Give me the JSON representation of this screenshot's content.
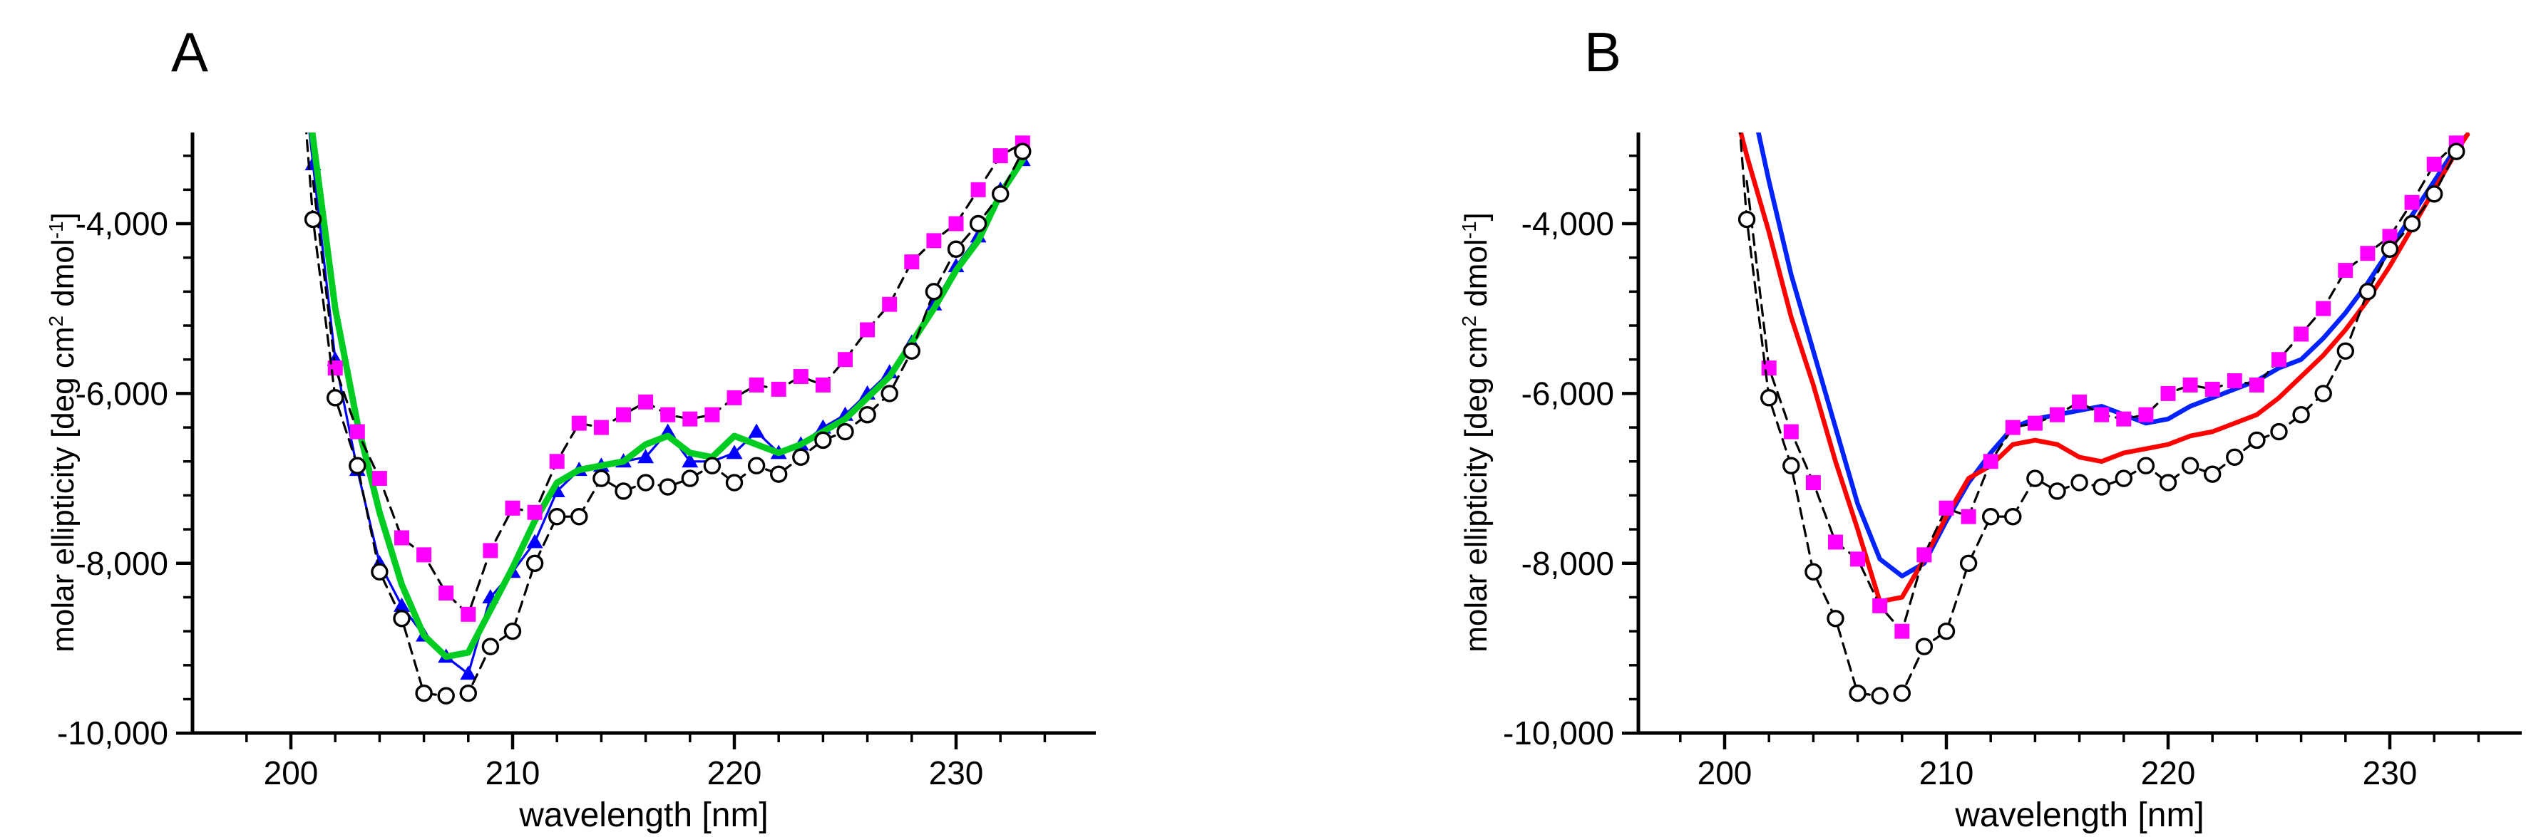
{
  "figure": {
    "background": "#ffffff",
    "axis_color": "#000000"
  },
  "chart_data": [
    {
      "panel_label": "A",
      "type": "line",
      "xlabel": "wavelength [nm]",
      "ylabel_parts": [
        {
          "text": "molar ellipticity [deg cm"
        },
        {
          "text": "2",
          "sup": true
        },
        {
          "text": " dmol"
        },
        {
          "text": "-1",
          "sup": true
        },
        {
          "text": "]"
        }
      ],
      "x_range": [
        195.6,
        236.2
      ],
      "y_range": [
        -10000,
        -2790
      ],
      "x_ticks": [
        200,
        210,
        220,
        230
      ],
      "x_tick_labels": [
        "200",
        "210",
        "220",
        "230"
      ],
      "x_minor_ticks": [
        198,
        202,
        204,
        206,
        208,
        212,
        214,
        216,
        218,
        222,
        224,
        226,
        228,
        232,
        234
      ],
      "y_ticks": [
        -4000,
        -6000,
        -8000,
        -10000
      ],
      "y_tick_labels": [
        "-4,000",
        "-6,000",
        "-8,000",
        "-10,000"
      ],
      "y_minor_ticks": [
        -3200,
        -3600,
        -4400,
        -4800,
        -5200,
        -5600,
        -6400,
        -6800,
        -7200,
        -7600,
        -8400,
        -8800,
        -9200,
        -9600
      ],
      "grid": false,
      "legend": false,
      "series": [
        {
          "name": "blue-triangles",
          "marker": "triangle",
          "marker_color": "#0000ff",
          "marker_size": 21,
          "marker_skip": 1,
          "line_color": "#0000ff",
          "line_width": 3.2,
          "line_dash": null,
          "x": [
            200.7,
            201,
            202,
            203,
            204,
            205,
            206,
            207,
            208,
            209,
            210,
            211,
            212,
            213,
            214,
            215,
            216,
            217,
            218,
            219,
            220,
            221,
            222,
            223,
            224,
            225,
            226,
            227,
            228,
            229,
            230,
            231,
            232,
            233
          ],
          "y": [
            -2600,
            -3300,
            -5600,
            -6900,
            -8000,
            -8500,
            -8850,
            -9100,
            -9300,
            -8400,
            -8100,
            -7750,
            -7150,
            -6900,
            -6850,
            -6800,
            -6750,
            -6450,
            -6800,
            -6800,
            -6700,
            -6450,
            -6700,
            -6600,
            -6400,
            -6250,
            -6000,
            -5750,
            -5400,
            -4950,
            -4500,
            -4150,
            -3600,
            -3250
          ]
        },
        {
          "name": "green-fit-line",
          "marker": null,
          "marker_skip": 0,
          "line_color": "#00cc22",
          "line_width": 9,
          "line_dash": null,
          "x": [
            200.8,
            202,
            203,
            204,
            205,
            206,
            207,
            208,
            209,
            210,
            211,
            212,
            213,
            214,
            215,
            216,
            217,
            218,
            219,
            220,
            221,
            222,
            223,
            224,
            225,
            226,
            227,
            228,
            229,
            230,
            231,
            232,
            233
          ],
          "y": [
            -2600,
            -5000,
            -6350,
            -7400,
            -8250,
            -8850,
            -9100,
            -9050,
            -8550,
            -8050,
            -7500,
            -7050,
            -6900,
            -6850,
            -6800,
            -6600,
            -6500,
            -6700,
            -6750,
            -6500,
            -6600,
            -6700,
            -6600,
            -6450,
            -6300,
            -6050,
            -5800,
            -5400,
            -5000,
            -4550,
            -4200,
            -3650,
            -3250
          ]
        },
        {
          "name": "magenta-squares",
          "marker": "square",
          "marker_color": "#ff00ff",
          "marker_size": 21,
          "marker_skip": 1,
          "line_color": "#000000",
          "line_width": 3.2,
          "line_dash": [
            15,
            10
          ],
          "x": [
            201,
            202,
            203,
            204,
            205,
            206,
            207,
            208,
            209,
            210,
            211,
            212,
            213,
            214,
            215,
            216,
            217,
            218,
            219,
            220,
            221,
            222,
            223,
            224,
            225,
            226,
            227,
            228,
            229,
            230,
            231,
            232,
            233
          ],
          "y": [
            -3500,
            -5700,
            -6450,
            -7000,
            -7700,
            -7900,
            -8350,
            -8600,
            -7850,
            -7350,
            -7400,
            -6800,
            -6350,
            -6400,
            -6250,
            -6100,
            -6250,
            -6300,
            -6250,
            -6050,
            -5900,
            -5950,
            -5800,
            -5900,
            -5600,
            -5250,
            -4950,
            -4450,
            -4200,
            -4000,
            -3600,
            -3200,
            -3050
          ]
        },
        {
          "name": "open-circles",
          "marker": "circle",
          "marker_color": "#ffffff",
          "marker_edge": "#000000",
          "marker_size": 21,
          "marker_skip": 1,
          "line_color": "#000000",
          "line_width": 3.2,
          "line_dash": [
            15,
            10
          ],
          "x": [
            200.6,
            201,
            202,
            203,
            204,
            205,
            206,
            207,
            208,
            209,
            210,
            211,
            212,
            213,
            214,
            215,
            216,
            217,
            218,
            219,
            220,
            221,
            222,
            223,
            224,
            225,
            226,
            227,
            228,
            229,
            230,
            231,
            232,
            233
          ],
          "y": [
            -2600,
            -3950,
            -6050,
            -6850,
            -8100,
            -8650,
            -9530,
            -9560,
            -9530,
            -8980,
            -8800,
            -8000,
            -7450,
            -7450,
            -7000,
            -7150,
            -7050,
            -7100,
            -7000,
            -6850,
            -7050,
            -6850,
            -6950,
            -6750,
            -6550,
            -6450,
            -6250,
            -6000,
            -5500,
            -4800,
            -4300,
            -4000,
            -3650,
            -3150
          ]
        }
      ]
    },
    {
      "panel_label": "B",
      "type": "line",
      "xlabel": "wavelength [nm]",
      "ylabel_parts": [
        {
          "text": "molar ellipticity [deg cm"
        },
        {
          "text": "2",
          "sup": true
        },
        {
          "text": " dmol"
        },
        {
          "text": "-1",
          "sup": true
        },
        {
          "text": "]"
        }
      ],
      "x_range": [
        196.1,
        235.9
      ],
      "y_range": [
        -10000,
        -2790
      ],
      "x_ticks": [
        200,
        210,
        220,
        230
      ],
      "x_tick_labels": [
        "200",
        "210",
        "220",
        "230"
      ],
      "x_minor_ticks": [
        198,
        202,
        204,
        206,
        208,
        212,
        214,
        216,
        218,
        222,
        224,
        226,
        228,
        232,
        234
      ],
      "y_ticks": [
        -4000,
        -6000,
        -8000,
        -10000
      ],
      "y_tick_labels": [
        "-4,000",
        "-6,000",
        "-8,000",
        "-10,000"
      ],
      "y_minor_ticks": [
        -3200,
        -3600,
        -4400,
        -4800,
        -5200,
        -5600,
        -6400,
        -6800,
        -7200,
        -7600,
        -8400,
        -8800,
        -9200,
        -9600
      ],
      "grid": false,
      "legend": false,
      "series": [
        {
          "name": "blue-fit-line",
          "marker": null,
          "marker_skip": 0,
          "line_color": "#0022ff",
          "line_width": 6.5,
          "line_dash": null,
          "x": [
            201.5,
            202,
            203,
            204,
            205,
            206,
            207,
            208,
            209,
            210,
            211,
            212,
            213,
            214,
            215,
            216,
            217,
            218,
            219,
            220,
            221,
            222,
            223,
            224,
            225,
            226,
            227,
            228,
            229,
            230,
            231,
            232,
            233,
            233.5
          ],
          "y": [
            -2900,
            -3500,
            -4600,
            -5500,
            -6400,
            -7300,
            -7950,
            -8150,
            -8000,
            -7500,
            -7050,
            -6700,
            -6400,
            -6300,
            -6250,
            -6200,
            -6150,
            -6250,
            -6350,
            -6300,
            -6150,
            -6050,
            -5950,
            -5850,
            -5700,
            -5600,
            -5350,
            -5050,
            -4700,
            -4300,
            -3900,
            -3500,
            -3100,
            -2950
          ]
        },
        {
          "name": "red-fit-line",
          "marker": null,
          "marker_skip": 0,
          "line_color": "#ff0000",
          "line_width": 6.5,
          "line_dash": null,
          "x": [
            200.7,
            201,
            202,
            203,
            204,
            205,
            206,
            207,
            208,
            209,
            210,
            211,
            212,
            213,
            214,
            215,
            216,
            217,
            218,
            219,
            220,
            221,
            222,
            223,
            224,
            225,
            226,
            227,
            228,
            229,
            230,
            231,
            232,
            233,
            233.5
          ],
          "y": [
            -2900,
            -3200,
            -4100,
            -5100,
            -5900,
            -6800,
            -7600,
            -8450,
            -8400,
            -7950,
            -7450,
            -7000,
            -6850,
            -6600,
            -6550,
            -6600,
            -6750,
            -6800,
            -6700,
            -6650,
            -6600,
            -6500,
            -6450,
            -6350,
            -6250,
            -6050,
            -5800,
            -5550,
            -5250,
            -4900,
            -4500,
            -4050,
            -3600,
            -3150,
            -2950
          ]
        },
        {
          "name": "magenta-squares",
          "marker": "square",
          "marker_color": "#ff00ff",
          "marker_size": 21,
          "marker_skip": 1,
          "line_color": "#000000",
          "line_width": 3.2,
          "line_dash": [
            15,
            10
          ],
          "x": [
            201,
            202,
            203,
            204,
            205,
            206,
            207,
            208,
            209,
            210,
            211,
            212,
            213,
            214,
            215,
            216,
            217,
            218,
            219,
            220,
            221,
            222,
            223,
            224,
            225,
            226,
            227,
            228,
            229,
            230,
            231,
            232,
            233
          ],
          "y": [
            -3500,
            -5700,
            -6450,
            -7050,
            -7750,
            -7950,
            -8500,
            -8800,
            -7900,
            -7350,
            -7450,
            -6800,
            -6400,
            -6350,
            -6250,
            -6100,
            -6250,
            -6300,
            -6250,
            -6000,
            -5900,
            -5950,
            -5850,
            -5900,
            -5600,
            -5300,
            -5000,
            -4550,
            -4350,
            -4150,
            -3750,
            -3300,
            -3050
          ]
        },
        {
          "name": "open-circles",
          "marker": "circle",
          "marker_color": "#ffffff",
          "marker_edge": "#000000",
          "marker_size": 21,
          "marker_skip": 1,
          "line_color": "#000000",
          "line_width": 3.2,
          "line_dash": [
            15,
            10
          ],
          "x": [
            200.6,
            201,
            202,
            203,
            204,
            205,
            206,
            207,
            208,
            209,
            210,
            211,
            212,
            213,
            214,
            215,
            216,
            217,
            218,
            219,
            220,
            221,
            222,
            223,
            224,
            225,
            226,
            227,
            228,
            229,
            230,
            231,
            232,
            233
          ],
          "y": [
            -2600,
            -3950,
            -6050,
            -6850,
            -8100,
            -8650,
            -9530,
            -9560,
            -9530,
            -8980,
            -8800,
            -8000,
            -7450,
            -7450,
            -7000,
            -7150,
            -7050,
            -7100,
            -7000,
            -6850,
            -7050,
            -6850,
            -6950,
            -6750,
            -6550,
            -6450,
            -6250,
            -6000,
            -5500,
            -4800,
            -4300,
            -4000,
            -3650,
            -3150
          ]
        }
      ]
    }
  ]
}
